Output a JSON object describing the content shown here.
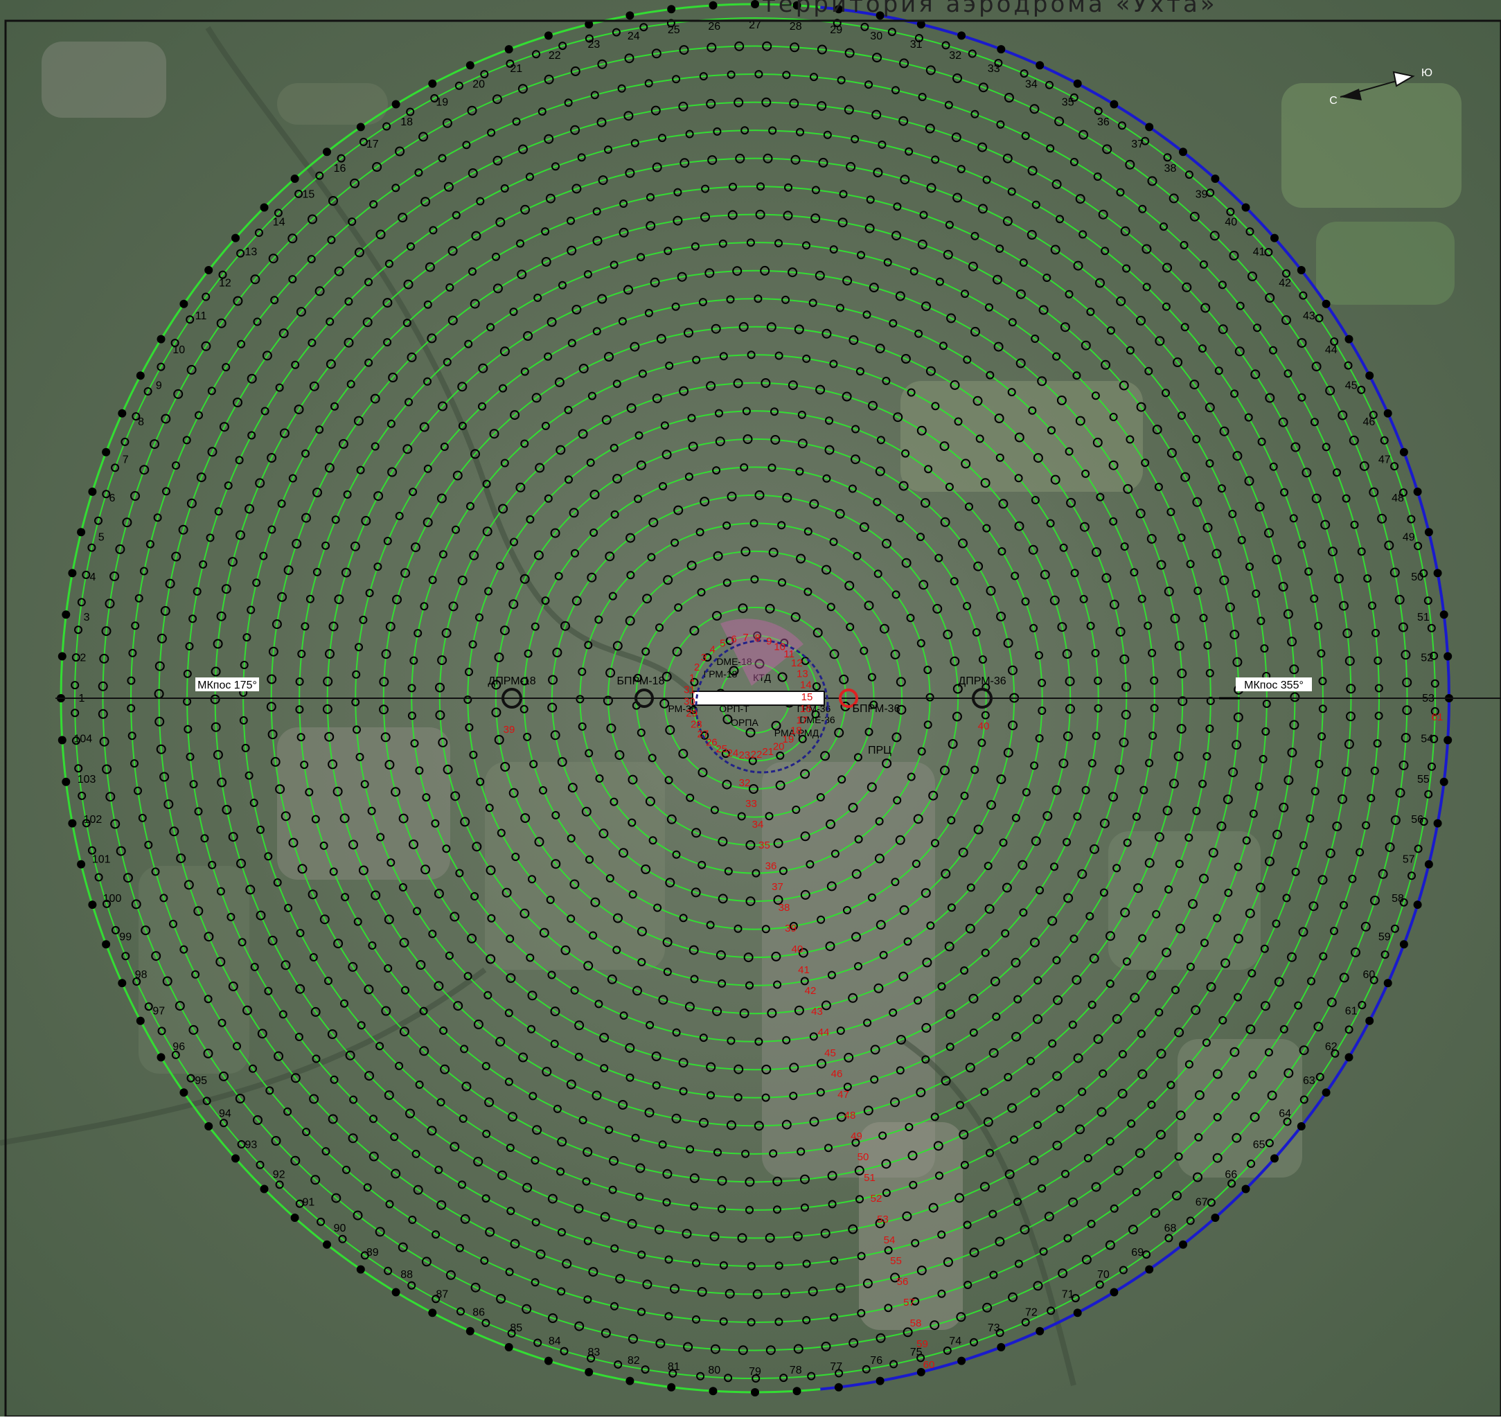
{
  "title": "территория аэродрома «Ухта»",
  "runway_labels": {
    "magnetic_course_south": "МКпос 175°",
    "magnetic_course_north": "МКпос 355°",
    "far_drive_18": "ДПРМ-18",
    "far_drive_36": "ДПРМ-36",
    "near_drive_18": "БПРМ-18",
    "near_drive_36": "БПРМ-36",
    "prc": "ПРЦ",
    "ktl": "КТД",
    "orpa": "ОРПА",
    "rma_rmg": "РМА РМД",
    "dme_18": "DME-18",
    "dme_36": "DME-36",
    "gp_18": "ГРМ-18",
    "gp_36": "ГРМ-36",
    "orpt": "ОРП-Т",
    "rm36": "РМ-36",
    "dpm36_label": "40",
    "dpm18_label": "39"
  },
  "north_arrow": {
    "c": "С",
    "yu": "Ю"
  },
  "outer_points": {
    "count": 104
  },
  "red_markers": [
    "1",
    "2",
    "3",
    "4",
    "5",
    "6",
    "7",
    "8",
    "9",
    "10",
    "11",
    "12",
    "13",
    "14",
    "15",
    "16",
    "17",
    "18",
    "19",
    "20",
    "21",
    "22",
    "23",
    "24",
    "25",
    "26",
    "27",
    "28",
    "29",
    "30",
    "31",
    "32",
    "33",
    "34",
    "35",
    "36",
    "37",
    "38",
    "39",
    "40",
    "41",
    "42",
    "43",
    "44",
    "45",
    "46",
    "47",
    "48",
    "49",
    "50",
    "51",
    "52",
    "53",
    "54",
    "55",
    "56",
    "57",
    "58",
    "59",
    "60",
    "61"
  ],
  "colors": {
    "ring_line": "#33dd33",
    "outer_arc_blue": "#1a1acc",
    "point_stroke": "#000000",
    "red_label": "#dd1111",
    "sector_pink": "#e060c0"
  }
}
